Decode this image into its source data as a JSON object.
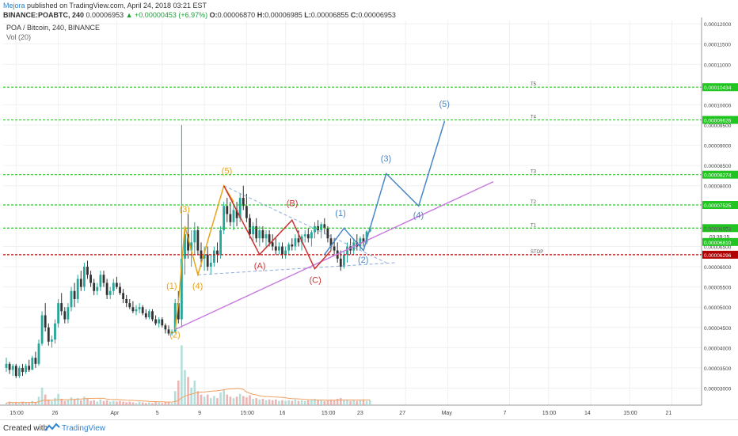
{
  "header": {
    "author": "Mejora",
    "published": "published on TradingView.com, April 24, 2018 03:21 EST",
    "symbol": "BINANCE:POABTC, 240",
    "last": "0.00006953",
    "change": "+0.00000453 (+6.97%)",
    "ohlc_o_label": "O:",
    "ohlc_o": "0.00006870",
    "ohlc_h_label": "H:",
    "ohlc_h": "0.00006985",
    "ohlc_l_label": "L:",
    "ohlc_l": "0.00006855",
    "ohlc_c_label": "C:",
    "ohlc_c": "0.00006953"
  },
  "legend": {
    "title": "POA / Bitcoin, 240, BINANCE",
    "volume": "Vol (20)"
  },
  "footer": {
    "created_with": "Created with",
    "brand": "TradingView"
  },
  "colors": {
    "up": "#26a69a",
    "down": "#333333",
    "green_level": "#29cc29",
    "red_level": "#cc0000",
    "orange_wave": "#e8a317",
    "red_wave": "#cc3333",
    "blue_wave": "#4a86c8",
    "trend": "#c878e0"
  },
  "chart_data": {
    "type": "candlestick",
    "symbol": "POA / Bitcoin, 240, BINANCE",
    "ylim": [
      2.58e-05,
      0.0001208
    ],
    "y_ticks": [
      {
        "v": 0.00012,
        "label": "0.00012000"
      },
      {
        "v": 0.000115,
        "label": "0.00011500"
      },
      {
        "v": 0.00011,
        "label": "0.00011000"
      },
      {
        "v": 0.000105,
        "label": "0.00010500"
      },
      {
        "v": 0.0001,
        "label": "0.00010000"
      },
      {
        "v": 9.5e-05,
        "label": "0.00009500"
      },
      {
        "v": 9e-05,
        "label": "0.00009000"
      },
      {
        "v": 8.5e-05,
        "label": "0.00008500"
      },
      {
        "v": 8e-05,
        "label": "0.00008000"
      },
      {
        "v": 6.5e-05,
        "label": "0.00006500"
      },
      {
        "v": 6e-05,
        "label": "0.00006000"
      },
      {
        "v": 5.5e-05,
        "label": "0.00005500"
      },
      {
        "v": 5e-05,
        "label": "0.00005000"
      },
      {
        "v": 4.5e-05,
        "label": "0.00004500"
      },
      {
        "v": 4e-05,
        "label": "0.00004000"
      },
      {
        "v": 3.5e-05,
        "label": "0.00003500"
      },
      {
        "v": 3e-05,
        "label": "0.00003000"
      }
    ],
    "x_ticks": [
      {
        "i": 3,
        "label": "15:00"
      },
      {
        "i": 16,
        "label": "26"
      },
      {
        "i": 34,
        "label": "Apr"
      },
      {
        "i": 48,
        "label": "5"
      },
      {
        "i": 61,
        "label": "9"
      },
      {
        "i": 74,
        "label": "15:00"
      },
      {
        "i": 86,
        "label": "16"
      },
      {
        "i": 99,
        "label": "15:00"
      },
      {
        "i": 110,
        "label": "23"
      },
      {
        "i": 123,
        "label": "27"
      },
      {
        "i": 136,
        "label": "May"
      },
      {
        "i": 155,
        "label": "7"
      },
      {
        "i": 167,
        "label": "15:00"
      },
      {
        "i": 180,
        "label": "14"
      },
      {
        "i": 192,
        "label": "15:00"
      },
      {
        "i": 205,
        "label": "21"
      }
    ],
    "x_range": [
      0,
      212
    ],
    "candles": [
      [
        3.5,
        3.75,
        3.4,
        3.6
      ],
      [
        3.6,
        3.65,
        3.35,
        3.45
      ],
      [
        3.45,
        3.6,
        3.3,
        3.55
      ],
      [
        3.55,
        3.6,
        3.25,
        3.3
      ],
      [
        3.3,
        3.55,
        3.25,
        3.5
      ],
      [
        3.5,
        3.6,
        3.3,
        3.4
      ],
      [
        3.4,
        3.6,
        3.35,
        3.55
      ],
      [
        3.55,
        3.7,
        3.4,
        3.45
      ],
      [
        3.45,
        3.8,
        3.45,
        3.75
      ],
      [
        3.75,
        3.9,
        3.5,
        3.6
      ],
      [
        3.6,
        4.2,
        3.55,
        4.1
      ],
      [
        4.1,
        4.9,
        4.05,
        4.8
      ],
      [
        4.8,
        5.1,
        4.4,
        4.5
      ],
      [
        4.5,
        4.6,
        4.05,
        4.15
      ],
      [
        4.15,
        4.3,
        4.0,
        4.2
      ],
      [
        4.2,
        4.7,
        4.1,
        4.6
      ],
      [
        4.6,
        5.2,
        4.5,
        5.1
      ],
      [
        5.1,
        5.35,
        4.8,
        4.9
      ],
      [
        4.9,
        5.0,
        4.6,
        4.7
      ],
      [
        4.7,
        5.1,
        4.6,
        5.0
      ],
      [
        5.0,
        5.5,
        4.9,
        5.4
      ],
      [
        5.4,
        5.6,
        5.0,
        5.2
      ],
      [
        5.2,
        5.8,
        5.1,
        5.7
      ],
      [
        5.7,
        5.9,
        5.4,
        5.5
      ],
      [
        5.5,
        6.1,
        5.4,
        6.0
      ],
      [
        6.0,
        6.15,
        5.7,
        5.8
      ],
      [
        5.8,
        5.9,
        5.5,
        5.6
      ],
      [
        5.6,
        5.7,
        5.3,
        5.4
      ],
      [
        5.4,
        5.6,
        5.3,
        5.5
      ],
      [
        5.5,
        5.9,
        5.4,
        5.8
      ],
      [
        5.8,
        5.9,
        5.5,
        5.6
      ],
      [
        5.6,
        5.7,
        5.2,
        5.3
      ],
      [
        5.3,
        5.5,
        5.2,
        5.4
      ],
      [
        5.4,
        5.7,
        5.3,
        5.6
      ],
      [
        5.6,
        5.75,
        5.45,
        5.5
      ],
      [
        5.5,
        5.6,
        5.3,
        5.35
      ],
      [
        5.35,
        5.45,
        5.1,
        5.2
      ],
      [
        5.2,
        5.3,
        5.0,
        5.1
      ],
      [
        5.1,
        5.2,
        4.95,
        5.0
      ],
      [
        5.0,
        5.15,
        4.85,
        4.9
      ],
      [
        4.9,
        5.05,
        4.8,
        4.95
      ],
      [
        4.95,
        5.1,
        4.85,
        5.0
      ],
      [
        5.0,
        5.05,
        4.8,
        4.85
      ],
      [
        4.85,
        4.95,
        4.7,
        4.75
      ],
      [
        4.75,
        4.95,
        4.7,
        4.9
      ],
      [
        4.9,
        4.95,
        4.65,
        4.7
      ],
      [
        4.7,
        4.8,
        4.55,
        4.6
      ],
      [
        4.6,
        4.75,
        4.5,
        4.7
      ],
      [
        4.7,
        4.75,
        4.5,
        4.55
      ],
      [
        4.55,
        4.6,
        4.35,
        4.45
      ],
      [
        4.45,
        4.55,
        4.3,
        4.35
      ],
      [
        4.35,
        4.45,
        4.3,
        4.4
      ],
      [
        4.4,
        5.2,
        4.35,
        5.1
      ],
      [
        5.1,
        5.4,
        4.6,
        4.7
      ],
      [
        4.7,
        9.5,
        4.5,
        6.2
      ],
      [
        6.2,
        7.0,
        5.8,
        6.8
      ],
      [
        6.8,
        7.3,
        6.2,
        6.4
      ],
      [
        6.4,
        6.9,
        6.0,
        6.6
      ],
      [
        6.6,
        7.1,
        6.3,
        6.9
      ],
      [
        6.9,
        7.0,
        6.3,
        6.4
      ],
      [
        6.4,
        6.6,
        6.0,
        6.2
      ],
      [
        6.2,
        6.5,
        5.9,
        6.3
      ],
      [
        6.3,
        6.5,
        5.9,
        6.0
      ],
      [
        6.0,
        6.3,
        5.8,
        6.1
      ],
      [
        6.1,
        6.5,
        6.0,
        6.4
      ],
      [
        6.4,
        6.6,
        6.1,
        6.3
      ],
      [
        6.3,
        7.0,
        6.2,
        6.9
      ],
      [
        6.9,
        7.6,
        6.8,
        7.5
      ],
      [
        7.5,
        7.7,
        7.1,
        7.3
      ],
      [
        7.3,
        7.6,
        7.0,
        7.1
      ],
      [
        7.1,
        7.5,
        6.9,
        7.4
      ],
      [
        7.4,
        7.6,
        7.0,
        7.2
      ],
      [
        7.2,
        7.8,
        7.1,
        7.7
      ],
      [
        7.7,
        8.0,
        7.4,
        7.5
      ],
      [
        7.5,
        7.8,
        7.1,
        7.2
      ],
      [
        7.2,
        7.3,
        6.7,
        6.8
      ],
      [
        6.8,
        7.1,
        6.6,
        7.0
      ],
      [
        7.0,
        7.2,
        6.6,
        6.7
      ],
      [
        6.7,
        7.0,
        6.5,
        6.9
      ],
      [
        6.9,
        7.0,
        6.6,
        6.7
      ],
      [
        6.7,
        6.9,
        6.5,
        6.8
      ],
      [
        6.8,
        6.9,
        6.5,
        6.6
      ],
      [
        6.6,
        6.8,
        6.4,
        6.5
      ],
      [
        6.5,
        6.7,
        6.3,
        6.4
      ],
      [
        6.4,
        6.6,
        6.3,
        6.5
      ],
      [
        6.5,
        6.6,
        6.2,
        6.3
      ],
      [
        6.3,
        6.5,
        6.2,
        6.4
      ],
      [
        6.4,
        6.6,
        6.3,
        6.55
      ],
      [
        6.55,
        6.7,
        6.4,
        6.5
      ],
      [
        6.5,
        6.8,
        6.4,
        6.7
      ],
      [
        6.7,
        6.9,
        6.5,
        6.6
      ],
      [
        6.6,
        6.8,
        6.4,
        6.75
      ],
      [
        6.75,
        6.9,
        6.6,
        6.8
      ],
      [
        6.8,
        6.95,
        6.6,
        6.7
      ],
      [
        6.7,
        6.9,
        6.5,
        6.85
      ],
      [
        6.85,
        7.1,
        6.7,
        7.0
      ],
      [
        7.0,
        7.15,
        6.8,
        6.9
      ],
      [
        6.9,
        7.1,
        6.7,
        7.05
      ],
      [
        7.05,
        7.2,
        6.8,
        6.95
      ],
      [
        6.95,
        7.0,
        6.6,
        6.7
      ],
      [
        6.7,
        6.8,
        6.4,
        6.5
      ],
      [
        6.5,
        6.7,
        6.3,
        6.4
      ],
      [
        6.4,
        6.6,
        6.1,
        6.2
      ],
      [
        6.2,
        6.4,
        5.9,
        6.0
      ],
      [
        6.0,
        6.4,
        5.95,
        6.3
      ],
      [
        6.3,
        6.6,
        6.1,
        6.5
      ],
      [
        6.5,
        6.7,
        6.3,
        6.4
      ],
      [
        6.4,
        6.7,
        6.3,
        6.6
      ],
      [
        6.6,
        6.8,
        6.4,
        6.5
      ],
      [
        6.5,
        6.75,
        6.4,
        6.7
      ],
      [
        6.7,
        6.8,
        6.5,
        6.6
      ],
      [
        6.6,
        6.9,
        6.55,
        6.87
      ],
      [
        6.87,
        6.99,
        6.85,
        6.95
      ]
    ],
    "volumes": [
      0.3,
      0.5,
      0.3,
      0.4,
      0.3,
      0.5,
      0.4,
      0.3,
      0.6,
      0.4,
      1.2,
      2.5,
      1.5,
      0.8,
      0.6,
      1.0,
      1.6,
      0.9,
      0.6,
      0.7,
      1.1,
      0.8,
      1.0,
      0.7,
      1.2,
      0.9,
      0.6,
      0.7,
      0.5,
      0.8,
      0.6,
      0.7,
      0.5,
      0.6,
      0.5,
      0.6,
      0.5,
      0.4,
      0.5,
      0.4,
      0.3,
      0.5,
      0.4,
      0.3,
      0.4,
      0.3,
      0.5,
      0.4,
      0.3,
      0.4,
      0.5,
      0.3,
      2.0,
      3.5,
      8.5,
      5.0,
      4.0,
      2.5,
      3.5,
      2.0,
      1.5,
      1.2,
      1.5,
      1.0,
      1.3,
      1.0,
      1.8,
      2.2,
      1.5,
      1.2,
      1.0,
      1.2,
      1.6,
      1.3,
      1.1,
      1.4,
      0.9,
      1.0,
      0.8,
      0.9,
      0.7,
      0.8,
      0.7,
      0.8,
      0.6,
      0.7,
      0.6,
      0.7,
      0.6,
      0.8,
      0.6,
      0.7,
      0.6,
      0.7,
      0.8,
      0.9,
      0.7,
      0.8,
      0.6,
      0.7,
      0.8,
      0.7,
      0.9,
      1.0,
      0.8,
      0.7,
      0.6,
      0.7,
      0.6,
      0.7,
      0.8,
      0.6,
      0.7
    ],
    "levels": [
      {
        "value": 0.00010434,
        "label": "0.00010434",
        "tag": "T5",
        "color": "green"
      },
      {
        "value": 9.626e-05,
        "label": "0.00009626",
        "tag": "T4",
        "color": "green"
      },
      {
        "value": 8.274e-05,
        "label": "0.00008274",
        "tag": "T3",
        "color": "green"
      },
      {
        "value": 7.525e-05,
        "label": "0.00007525",
        "tag": "T2",
        "color": "green"
      },
      {
        "value": 6.953e-05,
        "label": "0.00006953",
        "tag": "T1",
        "color": "green"
      },
      {
        "value": 6.296e-05,
        "label": "0.00006296",
        "tag": "STOP",
        "color": "red"
      }
    ],
    "price_labels": [
      {
        "value": 6.953e-05,
        "label": "0.00006953",
        "style": "white"
      },
      {
        "value": 6.75e-05,
        "label": "03:39:15",
        "style": "white"
      },
      {
        "value": 6.61e-05,
        "label": "0.00006810",
        "style": "green"
      }
    ],
    "waves": {
      "orange": [
        [
          52,
          4.45
        ],
        [
          53,
          5.1
        ],
        [
          55,
          7.0
        ],
        [
          59,
          5.8
        ],
        [
          67,
          8.0
        ],
        [
          70,
          7.6
        ]
      ],
      "red": [
        [
          67,
          8.0
        ],
        [
          78,
          6.3
        ],
        [
          88,
          7.15
        ],
        [
          95,
          5.95
        ],
        [
          100,
          6.4
        ]
      ],
      "blue": [
        [
          98,
          6.3
        ],
        [
          104,
          6.95
        ],
        [
          110,
          6.4
        ],
        [
          117,
          8.3
        ],
        [
          127,
          7.5
        ],
        [
          135,
          9.6
        ]
      ]
    },
    "wave_labels": [
      {
        "t": "(1)",
        "x": 51,
        "y": 5.45,
        "c": "orange"
      },
      {
        "t": "(2)",
        "x": 52,
        "y": 4.25,
        "c": "orange"
      },
      {
        "t": "(3)",
        "x": 55,
        "y": 7.35,
        "c": "orange"
      },
      {
        "t": "(4)",
        "x": 59,
        "y": 5.45,
        "c": "orange"
      },
      {
        "t": "(5)",
        "x": 68,
        "y": 8.3,
        "c": "orange"
      },
      {
        "t": "(A)",
        "x": 78,
        "y": 5.95,
        "c": "red"
      },
      {
        "t": "(B)",
        "x": 88,
        "y": 7.5,
        "c": "red"
      },
      {
        "t": "(C)",
        "x": 95,
        "y": 5.6,
        "c": "red"
      },
      {
        "t": "(1)",
        "x": 103,
        "y": 7.25,
        "c": "blue"
      },
      {
        "t": "(2)",
        "x": 110,
        "y": 6.1,
        "c": "blue"
      },
      {
        "t": "(3)",
        "x": 117,
        "y": 8.6,
        "c": "blue"
      },
      {
        "t": "(4)",
        "x": 127,
        "y": 7.2,
        "c": "blue"
      },
      {
        "t": "(5)",
        "x": 135,
        "y": 9.95,
        "c": "blue"
      }
    ],
    "trendline": [
      [
        52,
        4.45
      ],
      [
        150,
        8.1
      ]
    ],
    "triangle_top": [
      [
        67,
        8.0
      ],
      [
        117,
        6.1
      ]
    ],
    "triangle_bottom": [
      [
        59,
        5.8
      ],
      [
        120,
        6.1
      ]
    ]
  }
}
